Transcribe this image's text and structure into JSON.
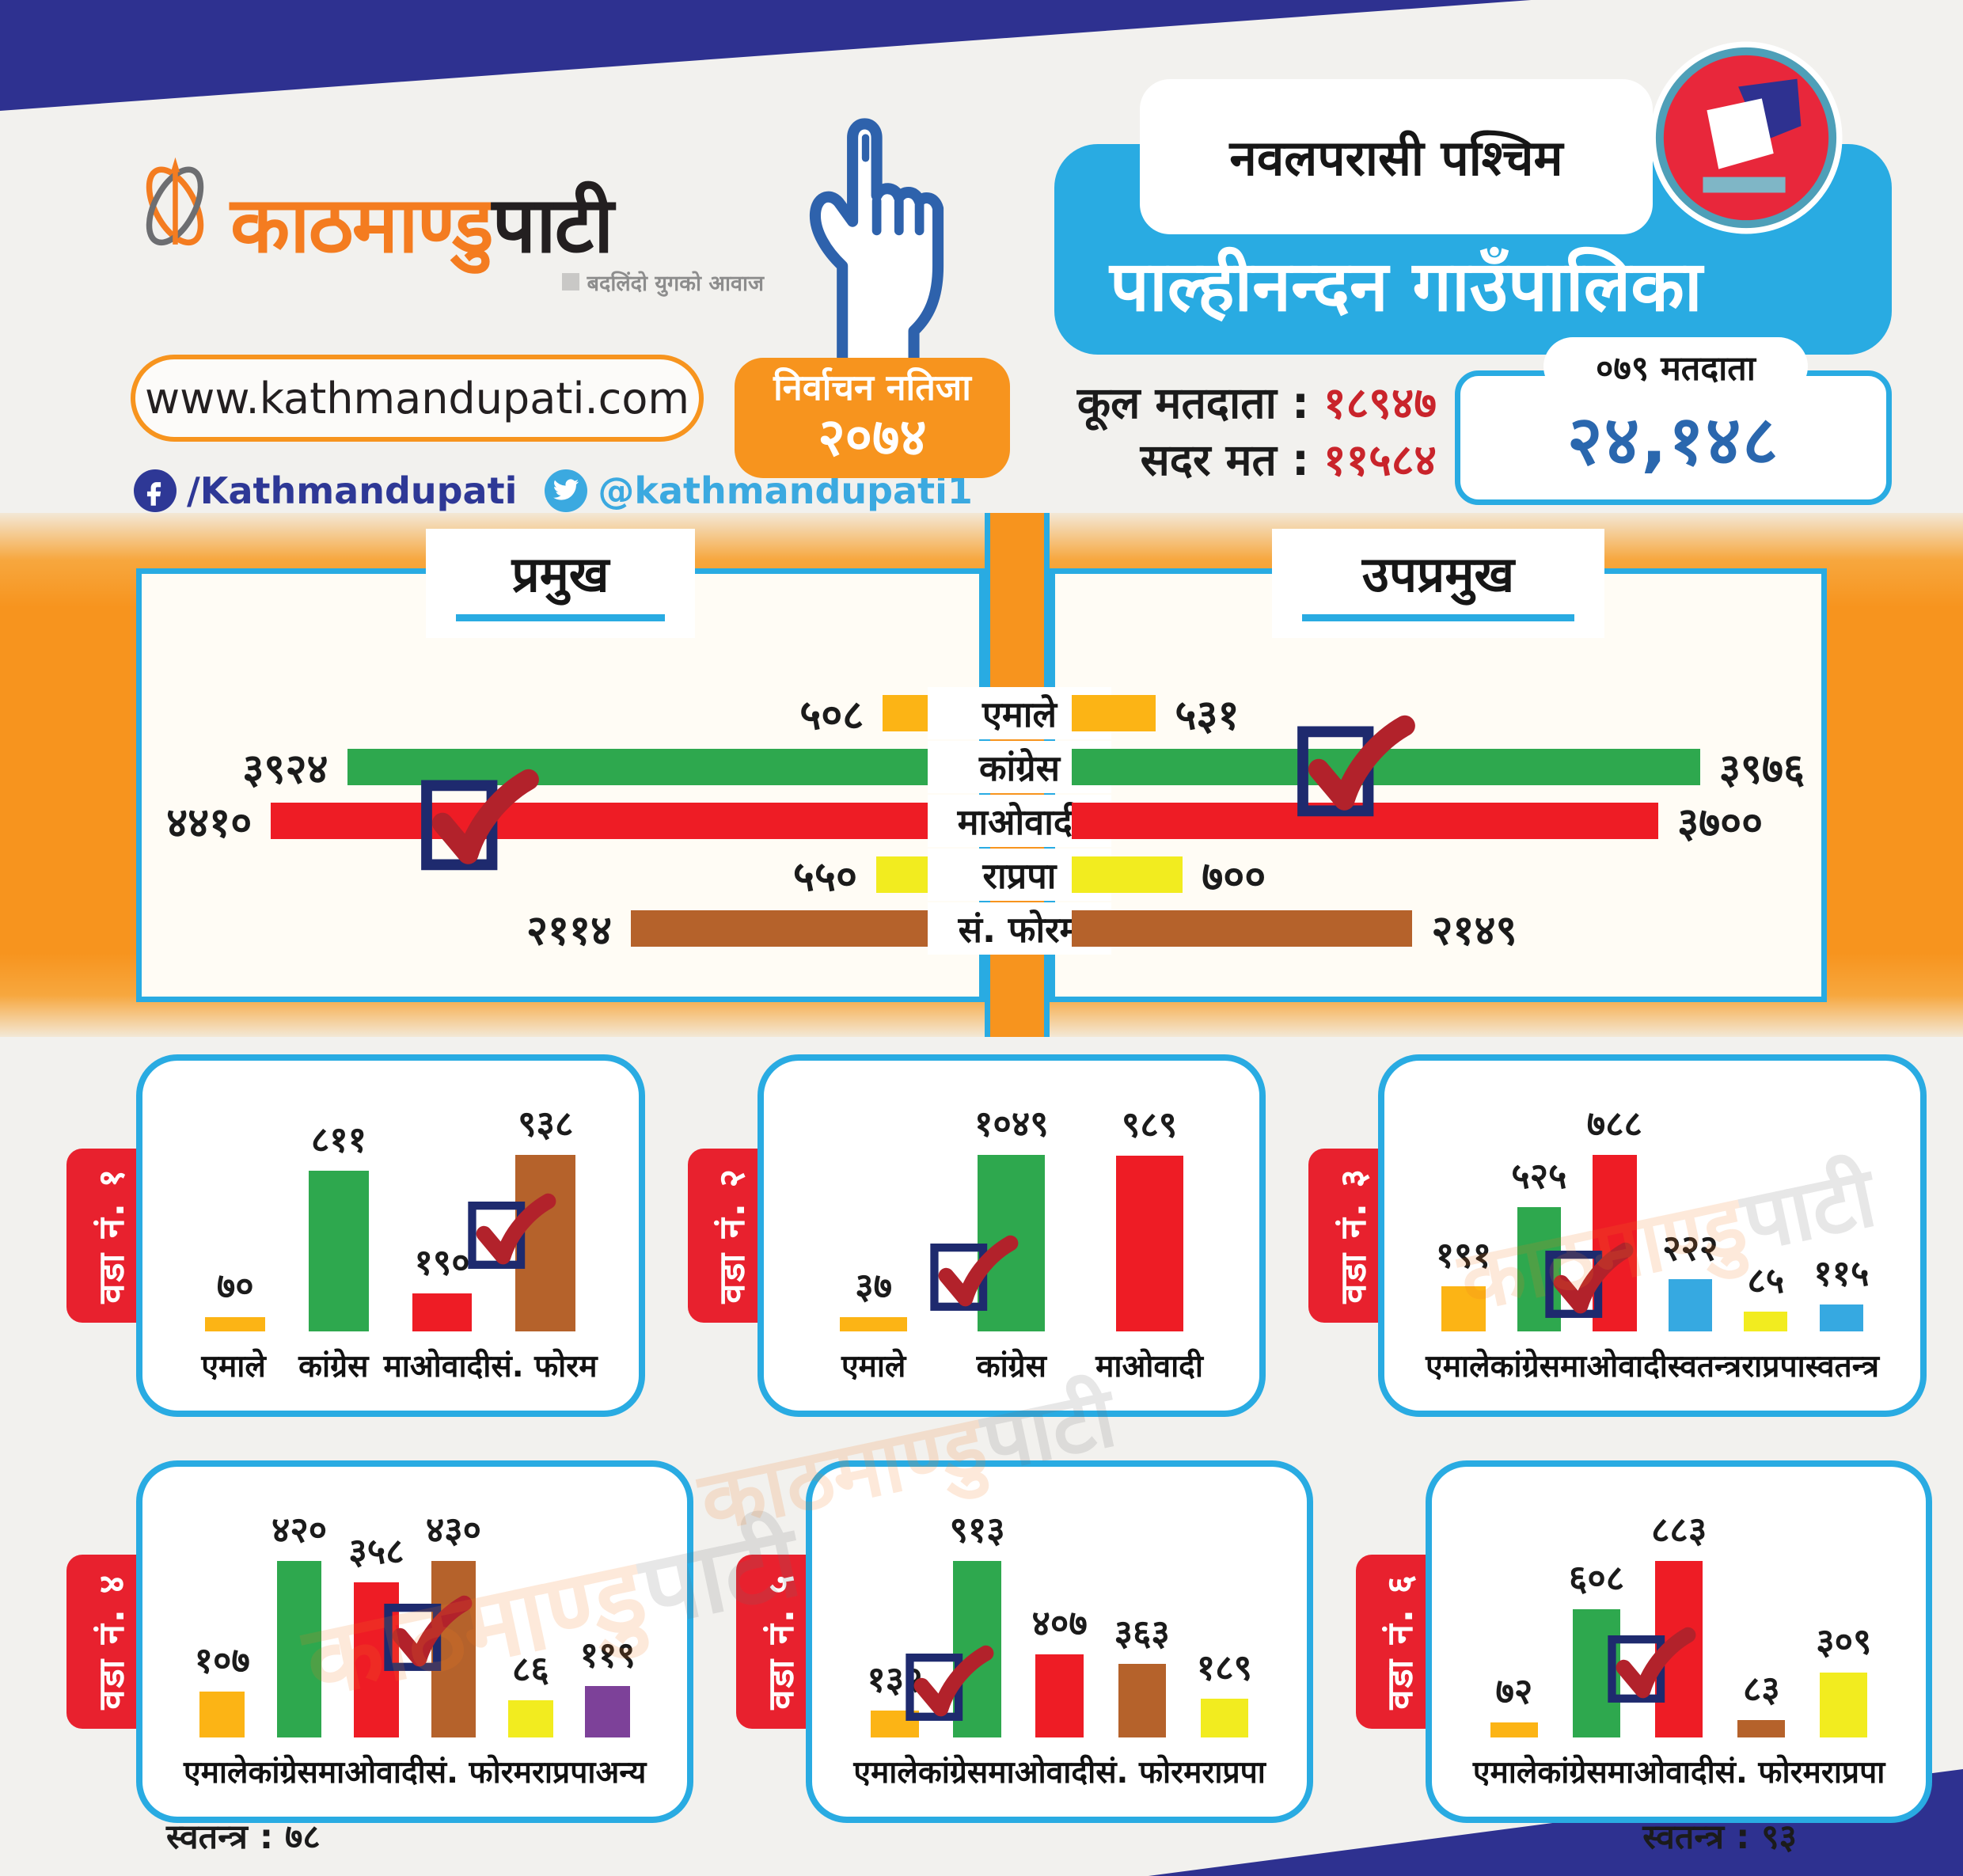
{
  "brand": {
    "logo_main": "काठमाण्डु",
    "logo_accent": "पाटी",
    "tagline": "बदलिंदो युगको आवाज",
    "website": "www.kathmandupati.com",
    "facebook": "/Kathmandupati",
    "twitter": "@kathmandupati1"
  },
  "header": {
    "district": "नवलपरासी पश्चिम",
    "municipality": "पाल्हीनन्दन गाउँपालिका",
    "badge_line1": "निर्वाचन नतिजा",
    "badge_line2": "२०७४",
    "total_voters_label": "कूल मतदाता :",
    "total_voters_value": "१८९४७",
    "valid_votes_label": "सदर मत :",
    "valid_votes_value": "११५८४",
    "box_label": "०७९ मतदाता",
    "box_value": "२४,१४८"
  },
  "colors": {
    "accent_orange": "#F7941E",
    "light_blue": "#29ABE2",
    "navy": "#2E3190",
    "red_value": "#C9242B",
    "blue_value": "#2A67AE"
  },
  "chart_data": [
    {
      "id": "pramukh",
      "type": "bar",
      "orientation": "horizontal-left",
      "title": "प्रमुख",
      "categories": [
        "एमाले",
        "कांग्रेस",
        "माओवादी",
        "राप्रपा",
        "सं. फोरम"
      ],
      "values": [
        508,
        3924,
        4410,
        550,
        2114
      ],
      "values_np": [
        "५०८",
        "३९२४",
        "४४१०",
        "५५०",
        "२११४"
      ],
      "colors": [
        "#FCB415",
        "#2EA84E",
        "#EE1C25",
        "#F2EC1F",
        "#B5622B"
      ],
      "winner_index": 2,
      "check_left": "30%",
      "xmax": 4410,
      "note": "स्वतन्त्र : ७८"
    },
    {
      "id": "upapramukh",
      "type": "bar",
      "orientation": "horizontal-right",
      "title": "उपप्रमुख",
      "categories": [
        "एमाले",
        "कांग्रेस",
        "माओवादी",
        "राप्रपा",
        "सं. फोरम"
      ],
      "values": [
        531,
        3976,
        3700,
        700,
        2149
      ],
      "values_np": [
        "५३१",
        "३९७६",
        "३७००",
        "७००",
        "२१४९"
      ],
      "colors": [
        "#FCB415",
        "#2EA84E",
        "#EE1C25",
        "#F2EC1F",
        "#B5622B"
      ],
      "winner_index": 1,
      "check_left": "45%",
      "xmax": 3976,
      "note": "स्वतन्त्र : ९३"
    },
    {
      "id": "ward-1",
      "type": "bar",
      "title": "वडा नं. १",
      "categories": [
        "एमाले",
        "कांग्रेस",
        "माओवादी",
        "सं. फोरम"
      ],
      "values": [
        70,
        811,
        190,
        938
      ],
      "values_np": [
        "७०",
        "८११",
        "१९०",
        "९३८"
      ],
      "colors": [
        "#FCB415",
        "#2EA84E",
        "#EE1C25",
        "#B5622B"
      ],
      "winner_index": 3,
      "check_top": "16%"
    },
    {
      "id": "ward-2",
      "type": "bar",
      "title": "वडा नं. २",
      "categories": [
        "एमाले",
        "कांग्रेस",
        "माओवादी"
      ],
      "values": [
        37,
        1049,
        989
      ],
      "values_np": [
        "३७",
        "१०४९",
        "९८९"
      ],
      "colors": [
        "#FCB415",
        "#2EA84E",
        "#EE1C25"
      ],
      "winner_index": 1,
      "check_top": "40%"
    },
    {
      "id": "ward-3",
      "type": "bar",
      "title": "वडा नं. ३",
      "categories": [
        "एमाले",
        "कांग्रेस",
        "माओवादी",
        "स्वतन्त्र",
        "राप्रपा",
        "स्वतन्त्र"
      ],
      "values": [
        191,
        525,
        788,
        222,
        85,
        115
      ],
      "values_np": [
        "१९१",
        "५२५",
        "७८८",
        "२२२",
        "८५",
        "११५"
      ],
      "colors": [
        "#FCB415",
        "#2EA84E",
        "#EE1C25",
        "#36A9E1",
        "#F2EC1F",
        "#36A9E1"
      ],
      "winner_index": 2,
      "check_top": "44%"
    },
    {
      "id": "ward-4",
      "type": "bar",
      "title": "वडा नं. ४",
      "categories": [
        "एमाले",
        "कांग्रेस",
        "माओवादी",
        "सं. फोरम",
        "राप्रपा",
        "अन्य"
      ],
      "values": [
        107,
        420,
        358,
        430,
        86,
        119
      ],
      "values_np": [
        "१०७",
        "४२०",
        "३५८",
        "४३०",
        "८६",
        "११९"
      ],
      "colors": [
        "#FCB415",
        "#2EA84E",
        "#EE1C25",
        "#B5622B",
        "#F2EC1F",
        "#7D4199"
      ],
      "winner_index": 3,
      "check_top": "14%"
    },
    {
      "id": "ward-5",
      "type": "bar",
      "title": "वडा नं. ५",
      "categories": [
        "एमाले",
        "कांग्रेस",
        "माओवादी",
        "सं. फोरम",
        "राप्रपा"
      ],
      "values": [
        132,
        913,
        407,
        363,
        189
      ],
      "values_np": [
        "१३२",
        "९१३",
        "४०७",
        "३६३",
        "१८९"
      ],
      "colors": [
        "#FCB415",
        "#2EA84E",
        "#EE1C25",
        "#B5622B",
        "#F2EC1F"
      ],
      "winner_index": 1,
      "check_top": "42%"
    },
    {
      "id": "ward-6",
      "type": "bar",
      "title": "वडा नं. ६",
      "categories": [
        "एमाले",
        "कांग्रेस",
        "माओवादी",
        "सं. फोरम",
        "राप्रपा"
      ],
      "values": [
        72,
        608,
        883,
        83,
        309
      ],
      "values_np": [
        "७२",
        "६०८",
        "८८३",
        "८३",
        "३०९"
      ],
      "colors": [
        "#FCB415",
        "#2EA84E",
        "#EE1C25",
        "#B5622B",
        "#F2EC1F"
      ],
      "winner_index": 2,
      "check_top": "32%"
    }
  ]
}
